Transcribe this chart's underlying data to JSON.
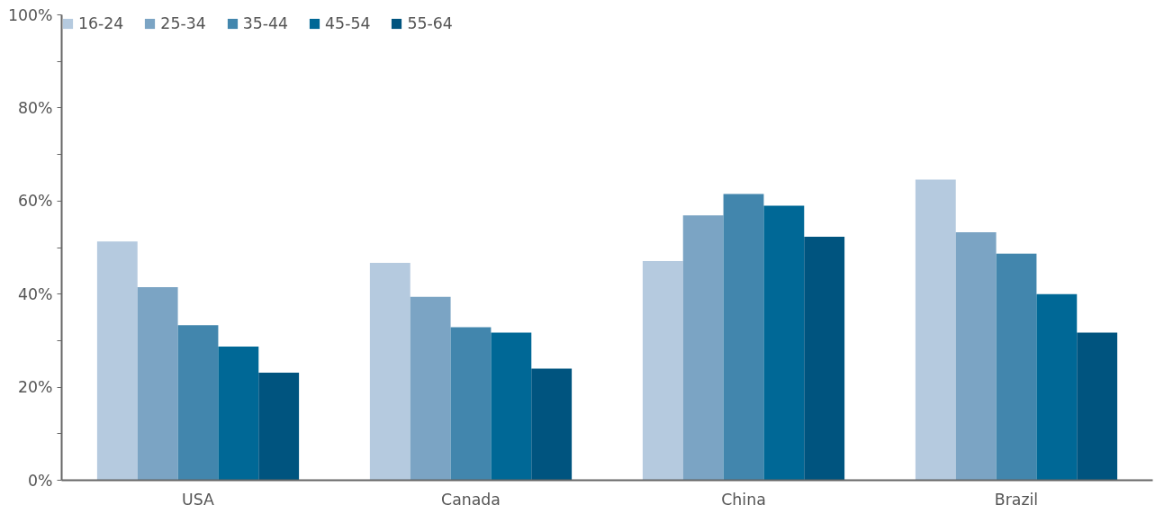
{
  "chart_data": {
    "type": "bar",
    "categories": [
      "USA",
      "Canada",
      "China",
      "Brazil"
    ],
    "series": [
      {
        "name": "16-24",
        "color": "#b5cadf",
        "values": [
          51.3,
          46.7,
          47.1,
          64.6
        ]
      },
      {
        "name": "25-34",
        "color": "#7ba4c4",
        "values": [
          41.5,
          39.4,
          56.9,
          53.3
        ]
      },
      {
        "name": "35-44",
        "color": "#4286ad",
        "values": [
          33.3,
          32.9,
          61.5,
          48.7
        ]
      },
      {
        "name": "45-54",
        "color": "#006896",
        "values": [
          28.7,
          31.7,
          59.0,
          40.0
        ]
      },
      {
        "name": "55-64",
        "color": "#00547f",
        "values": [
          23.1,
          24.0,
          52.3,
          31.7
        ]
      }
    ],
    "ylim": [
      0,
      100
    ],
    "yticks": [
      {
        "value": 0,
        "label": "0%"
      },
      {
        "value": 10,
        "label": null
      },
      {
        "value": 20,
        "label": "20%"
      },
      {
        "value": 30,
        "label": null
      },
      {
        "value": 40,
        "label": "40%"
      },
      {
        "value": 50,
        "label": null
      },
      {
        "value": 60,
        "label": "60%"
      },
      {
        "value": 70,
        "label": null
      },
      {
        "value": 80,
        "label": "80%"
      },
      {
        "value": 90,
        "label": null
      },
      {
        "value": 100,
        "label": "100%"
      }
    ],
    "grid": false,
    "legend": "top left"
  }
}
